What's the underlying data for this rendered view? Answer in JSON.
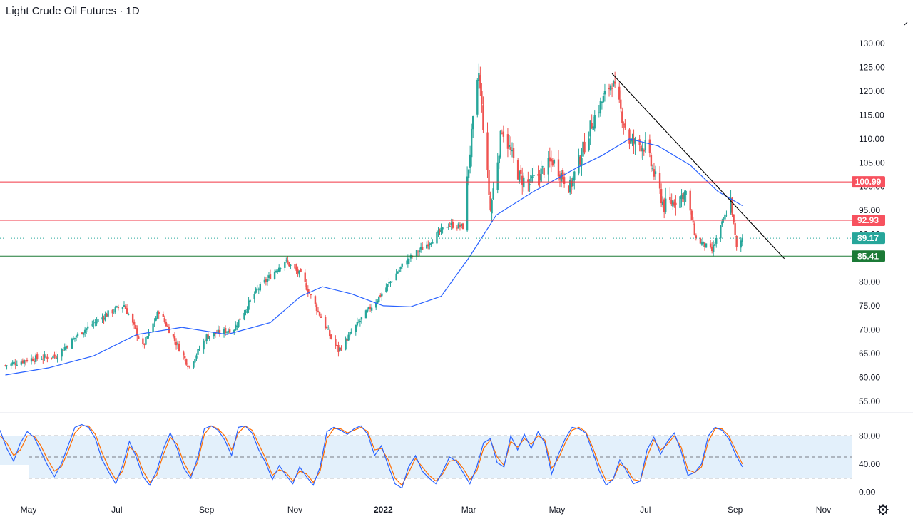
{
  "header": {
    "symbol": "Light Crude Oil Futures",
    "separator": "·",
    "interval": "1D"
  },
  "colors": {
    "up": "#26a69a",
    "down": "#ef5350",
    "ma": "#2962ff",
    "trendline": "#000000",
    "resistance": "#f23645",
    "support": "#1b7a36",
    "last": "#26a69a",
    "stoch_k": "#2962ff",
    "stoch_d": "#ff6d00",
    "stoch_band": "#e3f0fb"
  },
  "chart_data": [
    {
      "type": "candlestick",
      "title": "Light Crude Oil Futures · 1D",
      "x_ticks": [
        "May",
        "Jul",
        "Sep",
        "Nov",
        "2022",
        "Mar",
        "May",
        "Jul",
        "Sep",
        "Nov"
      ],
      "y_ticks": [
        "55.00",
        "60.00",
        "65.00",
        "70.00",
        "75.00",
        "80.00",
        "85.00",
        "90.00",
        "95.00",
        "100.00",
        "105.00",
        "110.00",
        "115.00",
        "120.00",
        "125.00",
        "130.00"
      ],
      "ylim": [
        55,
        130
      ],
      "price_labels": [
        {
          "value": 100.99,
          "text": "100.99",
          "kind": "resistance"
        },
        {
          "value": 92.93,
          "text": "92.93",
          "kind": "resistance"
        },
        {
          "value": 89.17,
          "text": "89.17",
          "kind": "last"
        },
        {
          "value": 85.41,
          "text": "85.41",
          "kind": "support"
        }
      ],
      "trendline": {
        "from": {
          "x": "2022-06-08",
          "y": 123.7
        },
        "to": {
          "x": "2022-10-05",
          "y": 84.9
        }
      },
      "close_path": [
        [
          "2021-04-15",
          62.5
        ],
        [
          "2021-05-01",
          63.8
        ],
        [
          "2021-05-20",
          64.5
        ],
        [
          "2021-06-05",
          69.2
        ],
        [
          "2021-06-25",
          73.4
        ],
        [
          "2021-07-06",
          75.2
        ],
        [
          "2021-07-19",
          66.4
        ],
        [
          "2021-07-30",
          73.9
        ],
        [
          "2021-08-20",
          62.2
        ],
        [
          "2021-09-01",
          68.6
        ],
        [
          "2021-09-20",
          70.3
        ],
        [
          "2021-10-05",
          78.0
        ],
        [
          "2021-10-25",
          84.5
        ],
        [
          "2021-11-05",
          81.4
        ],
        [
          "2021-11-26",
          68.2
        ],
        [
          "2021-12-01",
          65.6
        ],
        [
          "2021-12-15",
          71.5
        ],
        [
          "2021-12-29",
          76.8
        ],
        [
          "2022-01-15",
          83.8
        ],
        [
          "2022-02-01",
          88.2
        ],
        [
          "2022-02-15",
          92.0
        ],
        [
          "2022-02-25",
          91.6
        ],
        [
          "2022-03-03",
          110.6
        ],
        [
          "2022-03-08",
          123.7
        ],
        [
          "2022-03-16",
          95.0
        ],
        [
          "2022-03-24",
          112.3
        ],
        [
          "2022-04-05",
          102.0
        ],
        [
          "2022-04-12",
          100.6
        ],
        [
          "2022-04-28",
          105.4
        ],
        [
          "2022-05-10",
          99.8
        ],
        [
          "2022-05-26",
          114.1
        ],
        [
          "2022-06-08",
          122.1
        ],
        [
          "2022-06-20",
          109.5
        ],
        [
          "2022-07-01",
          108.4
        ],
        [
          "2022-07-14",
          95.8
        ],
        [
          "2022-07-29",
          98.6
        ],
        [
          "2022-08-05",
          89.0
        ],
        [
          "2022-08-16",
          86.5
        ],
        [
          "2022-08-29",
          97.0
        ],
        [
          "2022-09-02",
          86.9
        ],
        [
          "2022-09-06",
          89.17
        ]
      ],
      "sma_path": [
        [
          "2021-04-15",
          60.5
        ],
        [
          "2021-05-15",
          62.0
        ],
        [
          "2021-06-15",
          64.5
        ],
        [
          "2021-07-15",
          69.0
        ],
        [
          "2021-08-15",
          70.5
        ],
        [
          "2021-09-15",
          69.0
        ],
        [
          "2021-10-15",
          71.5
        ],
        [
          "2021-11-05",
          77.0
        ],
        [
          "2021-11-20",
          79.0
        ],
        [
          "2021-12-10",
          77.5
        ],
        [
          "2022-01-01",
          75.0
        ],
        [
          "2022-01-20",
          74.8
        ],
        [
          "2022-02-10",
          77.0
        ],
        [
          "2022-03-01",
          85.0
        ],
        [
          "2022-03-20",
          94.0
        ],
        [
          "2022-04-15",
          99.0
        ],
        [
          "2022-05-15",
          104.0
        ],
        [
          "2022-06-01",
          106.5
        ],
        [
          "2022-06-20",
          110.0
        ],
        [
          "2022-07-10",
          108.5
        ],
        [
          "2022-08-01",
          104.5
        ],
        [
          "2022-08-20",
          99.0
        ],
        [
          "2022-09-06",
          96.0
        ]
      ]
    },
    {
      "type": "line",
      "title": "",
      "y_ticks": [
        "0.00",
        "40.00",
        "80.00"
      ],
      "ylim": [
        0,
        100
      ],
      "bands": [
        20,
        50,
        80
      ],
      "series": [
        {
          "values": [
            88,
            62,
            44,
            70,
            86,
            78,
            58,
            38,
            22,
            40,
            66,
            92,
            96,
            92,
            76,
            46,
            28,
            12,
            38,
            72,
            50,
            22,
            10,
            30,
            62,
            84,
            62,
            34,
            20,
            48,
            90,
            94,
            88,
            74,
            52,
            92,
            94,
            84,
            60,
            42,
            18,
            38,
            24,
            12,
            36,
            22,
            10,
            36,
            86,
            92,
            88,
            82,
            90,
            94,
            82,
            52,
            66,
            38,
            12,
            6,
            36,
            52,
            30,
            20,
            12,
            30,
            50,
            44,
            28,
            12,
            36,
            70,
            76,
            42,
            36,
            80,
            60,
            82,
            62,
            86,
            70,
            26,
            54,
            76,
            92,
            90,
            84,
            58,
            30,
            10,
            18,
            46,
            30,
            12,
            16,
            60,
            78,
            54,
            72,
            84,
            58,
            24,
            28,
            40,
            80,
            92,
            88,
            76,
            54,
            36
          ]
        },
        {
          "values": [
            80,
            70,
            52,
            60,
            80,
            80,
            66,
            46,
            30,
            36,
            58,
            84,
            94,
            94,
            82,
            56,
            34,
            18,
            30,
            64,
            56,
            30,
            14,
            24,
            54,
            78,
            68,
            42,
            24,
            42,
            82,
            94,
            90,
            80,
            60,
            84,
            94,
            88,
            68,
            48,
            24,
            32,
            28,
            16,
            30,
            26,
            14,
            30,
            76,
            90,
            90,
            84,
            88,
            92,
            86,
            60,
            62,
            46,
            20,
            10,
            28,
            48,
            36,
            24,
            16,
            26,
            44,
            46,
            34,
            18,
            30,
            62,
            74,
            50,
            38,
            72,
            64,
            76,
            68,
            80,
            74,
            34,
            48,
            70,
            88,
            92,
            86,
            64,
            38,
            16,
            18,
            40,
            34,
            18,
            16,
            50,
            74,
            60,
            68,
            80,
            64,
            32,
            28,
            36,
            72,
            90,
            90,
            80,
            60,
            40
          ]
        }
      ]
    }
  ]
}
